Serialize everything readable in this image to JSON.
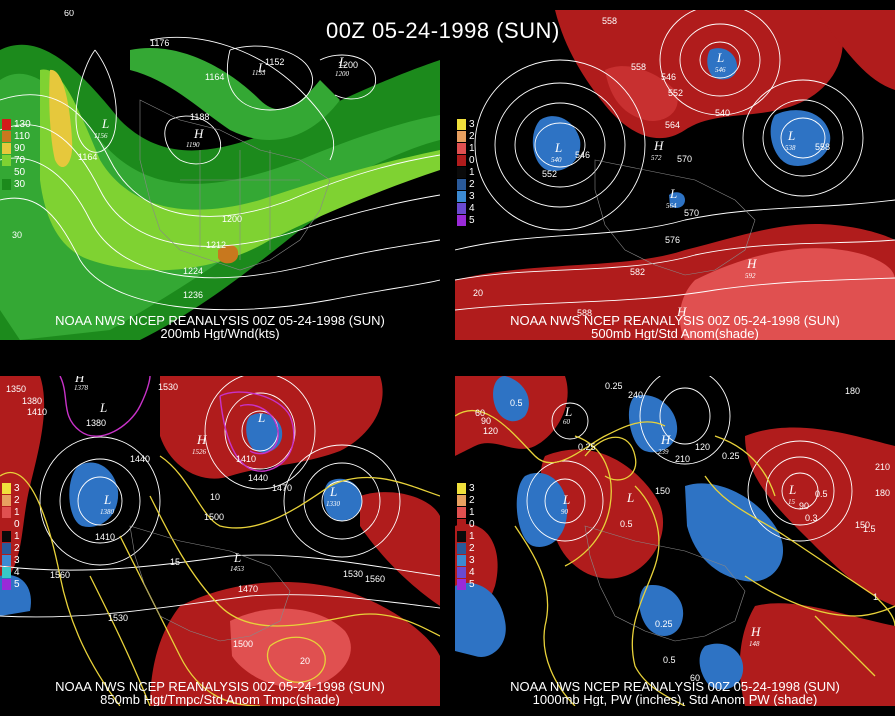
{
  "title": "00Z 05-24-1998 (SUN)",
  "colors": {
    "background": "#000000",
    "wind_green": "#1f9a1f",
    "anom_red": "#b51a1a",
    "anom_blue": "#2e73c4",
    "contour": "#ffffff",
    "temp_contour": "#e8d23a",
    "cold_contour": "#c832c8"
  },
  "panels": [
    {
      "id": "p200",
      "header": "NOAA NWS NCEP REANALYSIS 00Z 05-24-1998 (SUN)",
      "subtitle": "200mb Hgt/Wnd(kts)",
      "legend": [
        "130",
        "110",
        "90",
        "70",
        "50",
        "30"
      ],
      "legend_colors": [
        "#d41a1a",
        "#c8781e",
        "#e6c83c",
        "#7fd232",
        "#34a834",
        "#1c8a1c"
      ],
      "labels": [
        {
          "t": "1176"
        },
        {
          "t": "1164"
        },
        {
          "t": "1152"
        },
        {
          "t": "1200"
        },
        {
          "t": "1188"
        },
        {
          "t": "1164"
        },
        {
          "t": "1200"
        },
        {
          "t": "1212"
        },
        {
          "t": "1224"
        },
        {
          "t": "1236"
        },
        {
          "t": "60"
        },
        {
          "t": "30"
        }
      ],
      "centers": [
        {
          "letter": "L",
          "value": "1156"
        },
        {
          "letter": "H",
          "value": "1190"
        },
        {
          "letter": "L",
          "value": "1153"
        },
        {
          "letter": "L",
          "value": "1200"
        }
      ]
    },
    {
      "id": "p500",
      "header": "NOAA NWS NCEP REANALYSIS 00Z 05-24-1998 (SUN)",
      "subtitle": "500mb Hgt/Std Anom(shade)",
      "legend": [
        "3",
        "2",
        "1",
        "0",
        "1",
        "2",
        "3",
        "4",
        "5"
      ],
      "legend_colors": [
        "#f0e03c",
        "#e8a060",
        "#e05050",
        "#b01c1c",
        "#0a0a0a",
        "#2a5a9a",
        "#3c8ad2",
        "#6a4ad0",
        "#9a2ad8"
      ],
      "labels": [
        {
          "t": "558"
        },
        {
          "t": "558"
        },
        {
          "t": "546"
        },
        {
          "t": "552"
        },
        {
          "t": "540"
        },
        {
          "t": "564"
        },
        {
          "t": "570"
        },
        {
          "t": "546"
        },
        {
          "t": "552"
        },
        {
          "t": "570"
        },
        {
          "t": "576"
        },
        {
          "t": "582"
        },
        {
          "t": "588"
        },
        {
          "t": "558"
        },
        {
          "t": "20"
        }
      ],
      "centers": [
        {
          "letter": "L",
          "value": "540"
        },
        {
          "letter": "H",
          "value": "572"
        },
        {
          "letter": "L",
          "value": "564"
        },
        {
          "letter": "L",
          "value": "546"
        },
        {
          "letter": "H",
          "value": "592"
        },
        {
          "letter": "L",
          "value": "538"
        },
        {
          "letter": "H",
          "value": ""
        }
      ]
    },
    {
      "id": "p850",
      "header": "NOAA NWS NCEP REANALYSIS 00Z 05-24-1998 (SUN)",
      "subtitle": "850mb Hgt/Tmpc/Std Anom Tmpc(shade)",
      "legend": [
        "3",
        "2",
        "1",
        "0",
        "1",
        "2",
        "3",
        "4",
        "5"
      ],
      "legend_colors": [
        "#f0e03c",
        "#e8a060",
        "#e05050",
        "#b01c1c",
        "#0a0a0a",
        "#2a5a9a",
        "#3c8ad2",
        "#38c8c8",
        "#9a2ad8"
      ],
      "labels": [
        {
          "t": "1350"
        },
        {
          "t": "1380"
        },
        {
          "t": "1410"
        },
        {
          "t": "1380"
        },
        {
          "t": "1530"
        },
        {
          "t": "1440"
        },
        {
          "t": "1410"
        },
        {
          "t": "1440"
        },
        {
          "t": "1470"
        },
        {
          "t": "1500"
        },
        {
          "t": "1560"
        },
        {
          "t": "1530"
        },
        {
          "t": "1470"
        },
        {
          "t": "1500"
        },
        {
          "t": "1530"
        },
        {
          "t": "1560"
        },
        {
          "t": "1410"
        },
        {
          "t": "10"
        },
        {
          "t": "15"
        },
        {
          "t": "20"
        }
      ],
      "centers": [
        {
          "letter": "H",
          "value": "1378"
        },
        {
          "letter": "L",
          "value": ""
        },
        {
          "letter": "H",
          "value": "1526"
        },
        {
          "letter": "L",
          "value": "1380"
        },
        {
          "letter": "L",
          "value": ""
        },
        {
          "letter": "L",
          "value": "1330"
        },
        {
          "letter": "L",
          "value": "1453"
        }
      ]
    },
    {
      "id": "p1000",
      "header": "NOAA NWS NCEP REANALYSIS 00Z 05-24-1998 (SUN)",
      "subtitle": "1000mb Hgt, PW (inches), Std Anom PW (shade)",
      "legend": [
        "3",
        "2",
        "1",
        "0",
        "1",
        "2",
        "3",
        "4",
        "5"
      ],
      "legend_colors": [
        "#f0e03c",
        "#e8a060",
        "#e05050",
        "#b01c1c",
        "#0a0a0a",
        "#2a5a9a",
        "#3c8ad2",
        "#6a4ad0",
        "#9a2ad8"
      ],
      "labels": [
        {
          "t": "0.25"
        },
        {
          "t": "240"
        },
        {
          "t": "0.5"
        },
        {
          "t": "180"
        },
        {
          "t": "60"
        },
        {
          "t": "90"
        },
        {
          "t": "120"
        },
        {
          "t": "0.25"
        },
        {
          "t": "210"
        },
        {
          "t": "120"
        },
        {
          "t": "0.25"
        },
        {
          "t": "150"
        },
        {
          "t": "0.25"
        },
        {
          "t": "0.5"
        },
        {
          "t": "1.5"
        },
        {
          "t": "210"
        },
        {
          "t": "180"
        },
        {
          "t": "150"
        },
        {
          "t": "1"
        },
        {
          "t": "0.5"
        },
        {
          "t": "60"
        },
        {
          "t": "90"
        },
        {
          "t": "0.3"
        },
        {
          "t": "0.5"
        }
      ],
      "centers": [
        {
          "letter": "L",
          "value": "60"
        },
        {
          "letter": "H",
          "value": "239"
        },
        {
          "letter": "L",
          "value": ""
        },
        {
          "letter": "L",
          "value": "90"
        },
        {
          "letter": "L",
          "value": "15"
        },
        {
          "letter": "H",
          "value": "148"
        }
      ]
    }
  ]
}
